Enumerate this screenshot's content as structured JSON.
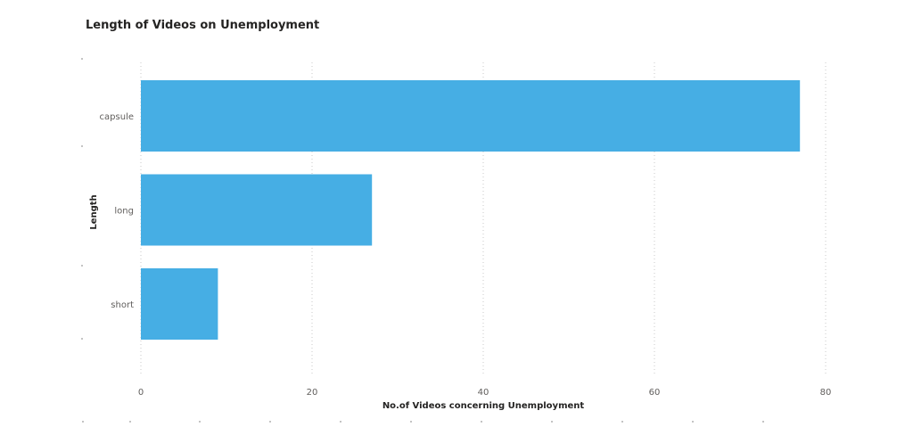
{
  "chart_data": {
    "type": "bar",
    "orientation": "horizontal",
    "title": "Length of Videos on Unemployment",
    "xlabel": "No.of Videos concerning Unemployment",
    "ylabel": "Length",
    "categories": [
      "capsule",
      "long",
      "short"
    ],
    "values": [
      77,
      27,
      9
    ],
    "xlim": [
      0,
      80
    ],
    "xticks": [
      0,
      20,
      40,
      60,
      80
    ],
    "grid": true,
    "bar_color": "#46aee4"
  }
}
